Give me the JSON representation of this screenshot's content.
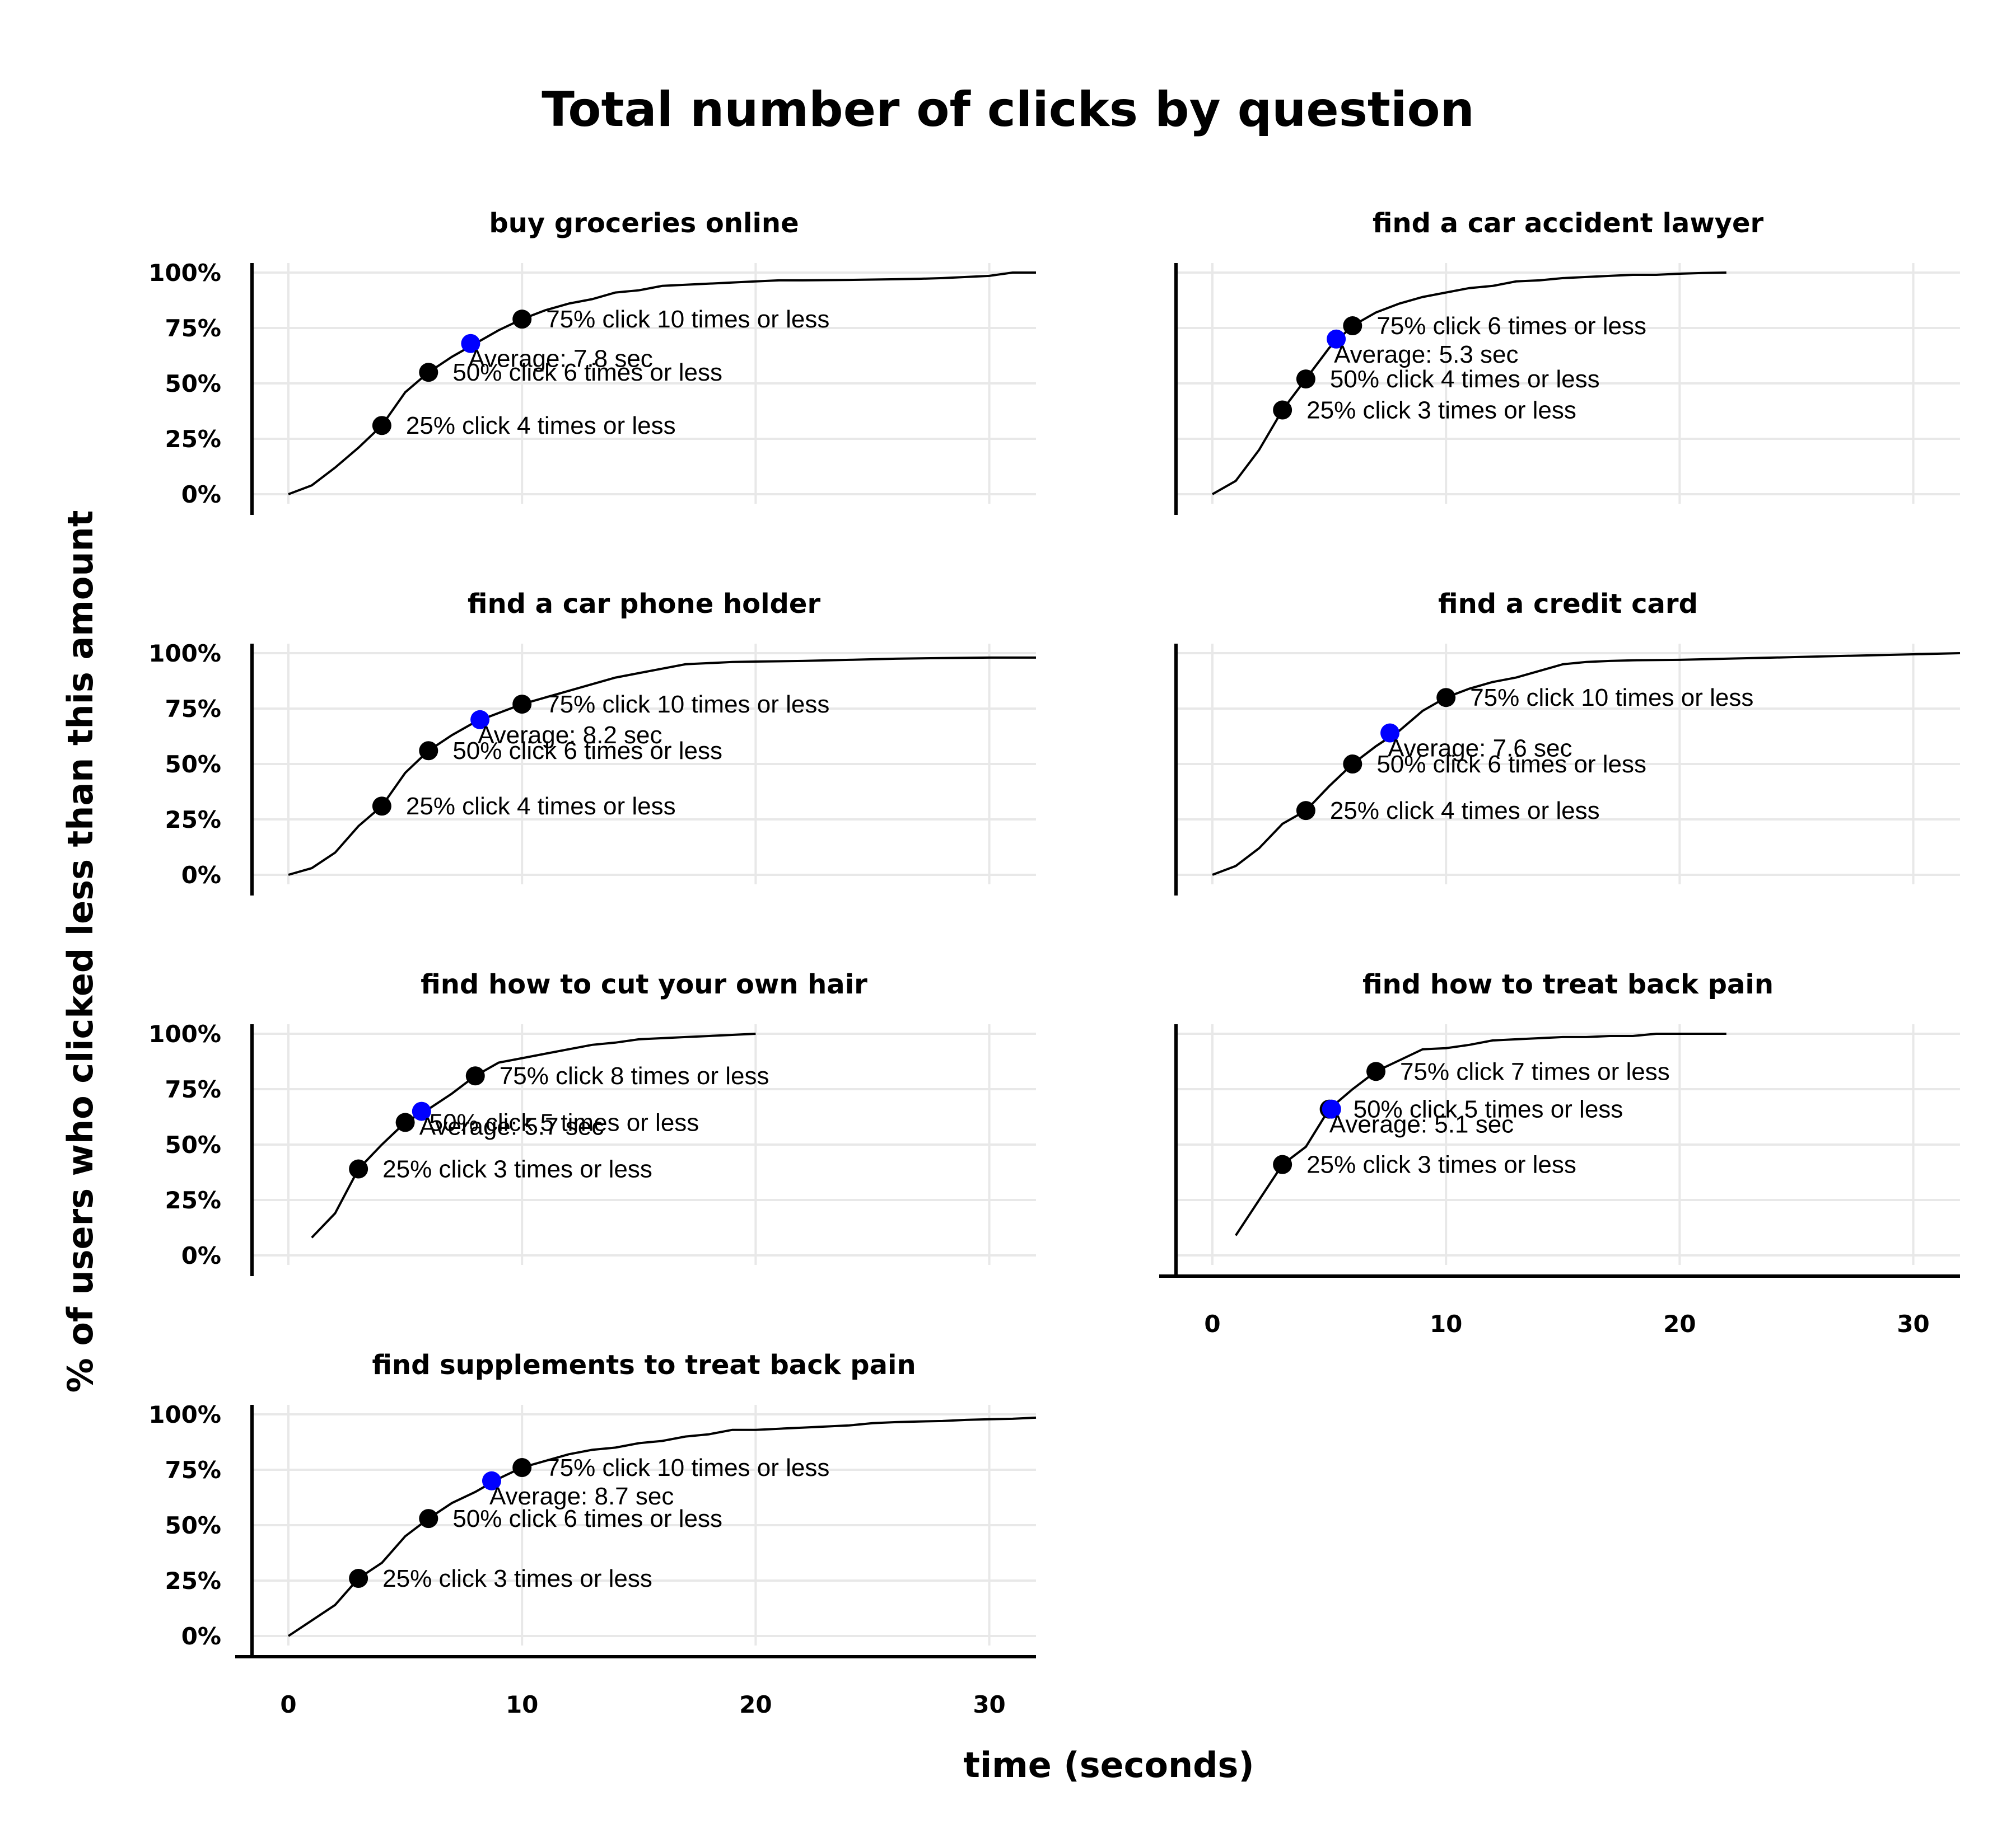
{
  "title": "Total number of clicks by question",
  "x_axis_title": "time (seconds)",
  "y_axis_title": "% of users who clicked less than this amount",
  "colors": {
    "line": "#000000",
    "quartile_point": "#000000",
    "average_point": "#0000ff",
    "grid": "#e8e8e8",
    "axis": "#000000"
  },
  "chart_data": [
    {
      "type": "line",
      "title": "buy groceries online",
      "xlim": [
        0,
        32
      ],
      "ylim": [
        0,
        1
      ],
      "grid": true,
      "x_ticks": [
        0,
        10,
        20,
        30
      ],
      "y_ticks": [
        0,
        0.25,
        0.5,
        0.75,
        1
      ],
      "x_tick_labels": [],
      "y_tick_labels": [
        "0%",
        "25%",
        "50%",
        "75%",
        "100%"
      ],
      "series": [
        {
          "x": [
            0,
            1,
            2,
            3,
            4,
            5,
            6,
            7,
            8,
            9,
            10,
            11,
            12,
            13,
            14,
            15,
            16,
            17,
            18,
            19,
            20,
            21,
            22,
            24,
            26,
            27,
            28,
            29,
            30,
            31,
            32
          ],
          "y": [
            0,
            0.04,
            0.12,
            0.21,
            0.31,
            0.46,
            0.55,
            0.62,
            0.68,
            0.74,
            0.79,
            0.83,
            0.86,
            0.88,
            0.91,
            0.92,
            0.94,
            0.945,
            0.95,
            0.955,
            0.96,
            0.965,
            0.965,
            0.967,
            0.97,
            0.972,
            0.975,
            0.98,
            0.985,
            1.0,
            1.0
          ]
        }
      ],
      "points": [
        {
          "x": 4,
          "y": 0.31,
          "kind": "quartile",
          "label": "25% click 4 times or less"
        },
        {
          "x": 6,
          "y": 0.55,
          "kind": "quartile",
          "label": "50% click 6 times or less"
        },
        {
          "x": 10,
          "y": 0.79,
          "kind": "quartile",
          "label": "75% click 10 times or less"
        },
        {
          "x": 7.8,
          "y": 0.68,
          "kind": "average",
          "label": "Average: 7.8 sec"
        }
      ]
    },
    {
      "type": "line",
      "title": "find a car accident lawyer",
      "xlim": [
        0,
        32
      ],
      "ylim": [
        0,
        1
      ],
      "grid": true,
      "x_ticks": [
        0,
        10,
        20,
        30
      ],
      "y_ticks": [
        0,
        0.25,
        0.5,
        0.75,
        1
      ],
      "x_tick_labels": [],
      "y_tick_labels": [],
      "series": [
        {
          "x": [
            0,
            1,
            2,
            3,
            4,
            5,
            6,
            7,
            8,
            9,
            10,
            11,
            12,
            13,
            14,
            15,
            16,
            17,
            18,
            19,
            20,
            21,
            22
          ],
          "y": [
            0,
            0.06,
            0.2,
            0.38,
            0.52,
            0.66,
            0.76,
            0.82,
            0.86,
            0.89,
            0.91,
            0.93,
            0.94,
            0.96,
            0.965,
            0.975,
            0.98,
            0.985,
            0.99,
            0.99,
            0.995,
            0.998,
            1.0
          ]
        }
      ],
      "points": [
        {
          "x": 3,
          "y": 0.38,
          "kind": "quartile",
          "label": "25% click 3 times or less"
        },
        {
          "x": 4,
          "y": 0.52,
          "kind": "quartile",
          "label": "50% click 4 times or less"
        },
        {
          "x": 6,
          "y": 0.76,
          "kind": "quartile",
          "label": "75% click 6 times or less"
        },
        {
          "x": 5.3,
          "y": 0.7,
          "kind": "average",
          "label": "Average: 5.3 sec"
        }
      ]
    },
    {
      "type": "line",
      "title": "find a car phone holder",
      "xlim": [
        0,
        32
      ],
      "ylim": [
        0,
        1
      ],
      "grid": true,
      "x_ticks": [
        0,
        10,
        20,
        30
      ],
      "y_ticks": [
        0,
        0.25,
        0.5,
        0.75,
        1
      ],
      "x_tick_labels": [],
      "y_tick_labels": [
        "0%",
        "25%",
        "50%",
        "75%",
        "100%"
      ],
      "series": [
        {
          "x": [
            0,
            1,
            2,
            3,
            4,
            5,
            6,
            7,
            8,
            9,
            10,
            11,
            12,
            13,
            14,
            15,
            16,
            17,
            18,
            19,
            20,
            22,
            24,
            26,
            28,
            30,
            32
          ],
          "y": [
            0,
            0.03,
            0.1,
            0.22,
            0.31,
            0.46,
            0.56,
            0.63,
            0.69,
            0.73,
            0.77,
            0.8,
            0.83,
            0.86,
            0.89,
            0.91,
            0.93,
            0.95,
            0.955,
            0.96,
            0.962,
            0.965,
            0.97,
            0.975,
            0.978,
            0.98,
            0.98
          ]
        }
      ],
      "points": [
        {
          "x": 4,
          "y": 0.31,
          "kind": "quartile",
          "label": "25% click 4 times or less"
        },
        {
          "x": 6,
          "y": 0.56,
          "kind": "quartile",
          "label": "50% click 6 times or less"
        },
        {
          "x": 10,
          "y": 0.77,
          "kind": "quartile",
          "label": "75% click 10 times or less"
        },
        {
          "x": 8.2,
          "y": 0.7,
          "kind": "average",
          "label": "Average: 8.2 sec"
        }
      ]
    },
    {
      "type": "line",
      "title": "find a credit card",
      "xlim": [
        0,
        32
      ],
      "ylim": [
        0,
        1
      ],
      "grid": true,
      "x_ticks": [
        0,
        10,
        20,
        30
      ],
      "y_ticks": [
        0,
        0.25,
        0.5,
        0.75,
        1
      ],
      "x_tick_labels": [],
      "y_tick_labels": [],
      "series": [
        {
          "x": [
            0,
            1,
            2,
            3,
            4,
            5,
            6,
            7,
            8,
            9,
            10,
            11,
            12,
            13,
            14,
            15,
            16,
            17,
            18,
            20,
            22,
            24,
            26,
            28,
            30,
            32
          ],
          "y": [
            0,
            0.04,
            0.12,
            0.23,
            0.29,
            0.4,
            0.5,
            0.58,
            0.65,
            0.74,
            0.8,
            0.84,
            0.87,
            0.89,
            0.92,
            0.95,
            0.96,
            0.965,
            0.968,
            0.97,
            0.975,
            0.98,
            0.985,
            0.99,
            0.995,
            1.0
          ]
        }
      ],
      "points": [
        {
          "x": 4,
          "y": 0.29,
          "kind": "quartile",
          "label": "25% click 4 times or less"
        },
        {
          "x": 6,
          "y": 0.5,
          "kind": "quartile",
          "label": "50% click 6 times or less"
        },
        {
          "x": 10,
          "y": 0.8,
          "kind": "quartile",
          "label": "75% click 10 times or less"
        },
        {
          "x": 7.6,
          "y": 0.64,
          "kind": "average",
          "label": "Average: 7.6 sec"
        }
      ]
    },
    {
      "type": "line",
      "title": "find how to cut your own hair",
      "xlim": [
        0,
        32
      ],
      "ylim": [
        0,
        1
      ],
      "grid": true,
      "x_ticks": [
        0,
        10,
        20,
        30
      ],
      "y_ticks": [
        0,
        0.25,
        0.5,
        0.75,
        1
      ],
      "x_tick_labels": [],
      "y_tick_labels": [
        "0%",
        "25%",
        "50%",
        "75%",
        "100%"
      ],
      "series": [
        {
          "x": [
            1,
            2,
            3,
            4,
            5,
            6,
            7,
            8,
            9,
            10,
            11,
            12,
            13,
            14,
            15,
            16,
            17,
            18,
            19,
            20
          ],
          "y": [
            0.08,
            0.19,
            0.39,
            0.5,
            0.6,
            0.66,
            0.73,
            0.81,
            0.87,
            0.89,
            0.91,
            0.93,
            0.95,
            0.96,
            0.975,
            0.98,
            0.985,
            0.99,
            0.995,
            1.0
          ]
        }
      ],
      "points": [
        {
          "x": 3,
          "y": 0.39,
          "kind": "quartile",
          "label": "25% click 3 times or less"
        },
        {
          "x": 5,
          "y": 0.6,
          "kind": "quartile",
          "label": "50% click 5 times or less"
        },
        {
          "x": 8,
          "y": 0.81,
          "kind": "quartile",
          "label": "75% click 8 times or less"
        },
        {
          "x": 5.7,
          "y": 0.65,
          "kind": "average",
          "label": "Average: 5.7 sec"
        }
      ]
    },
    {
      "type": "line",
      "title": "find how to treat back pain",
      "xlim": [
        0,
        32
      ],
      "ylim": [
        0,
        1
      ],
      "grid": true,
      "x_ticks": [
        0,
        10,
        20,
        30
      ],
      "y_ticks": [
        0,
        0.25,
        0.5,
        0.75,
        1
      ],
      "x_tick_labels": [
        "0",
        "10",
        "20",
        "30"
      ],
      "y_tick_labels": [],
      "series": [
        {
          "x": [
            1,
            2,
            3,
            4,
            5,
            6,
            7,
            8,
            9,
            10,
            11,
            12,
            13,
            14,
            15,
            16,
            17,
            18,
            19,
            20,
            21,
            22
          ],
          "y": [
            0.09,
            0.25,
            0.41,
            0.49,
            0.66,
            0.75,
            0.83,
            0.88,
            0.93,
            0.935,
            0.95,
            0.97,
            0.975,
            0.98,
            0.985,
            0.985,
            0.99,
            0.99,
            1.0,
            1.0,
            1.0,
            1.0
          ]
        }
      ],
      "points": [
        {
          "x": 3,
          "y": 0.41,
          "kind": "quartile",
          "label": "25% click 3 times or less"
        },
        {
          "x": 5,
          "y": 0.66,
          "kind": "quartile",
          "label": "50% click 5 times or less"
        },
        {
          "x": 7,
          "y": 0.83,
          "kind": "quartile",
          "label": "75% click 7 times or less"
        },
        {
          "x": 5.1,
          "y": 0.66,
          "kind": "average",
          "label": "Average: 5.1 sec"
        }
      ]
    },
    {
      "type": "line",
      "title": "find supplements to treat back pain",
      "xlim": [
        0,
        32
      ],
      "ylim": [
        0,
        1
      ],
      "grid": true,
      "x_ticks": [
        0,
        10,
        20,
        30
      ],
      "y_ticks": [
        0,
        0.25,
        0.5,
        0.75,
        1
      ],
      "x_tick_labels": [
        "0",
        "10",
        "20",
        "30"
      ],
      "y_tick_labels": [
        "0%",
        "25%",
        "50%",
        "75%",
        "100%"
      ],
      "series": [
        {
          "x": [
            0,
            1,
            2,
            3,
            4,
            5,
            6,
            7,
            8,
            9,
            10,
            11,
            12,
            13,
            14,
            15,
            16,
            17,
            18,
            19,
            20,
            21,
            22,
            23,
            24,
            25,
            26,
            27,
            28,
            29,
            30,
            31,
            32
          ],
          "y": [
            0,
            0.07,
            0.14,
            0.26,
            0.33,
            0.45,
            0.53,
            0.6,
            0.65,
            0.71,
            0.76,
            0.79,
            0.82,
            0.84,
            0.85,
            0.87,
            0.88,
            0.9,
            0.91,
            0.93,
            0.93,
            0.935,
            0.94,
            0.945,
            0.95,
            0.96,
            0.965,
            0.968,
            0.97,
            0.975,
            0.978,
            0.98,
            0.985
          ]
        }
      ],
      "points": [
        {
          "x": 3,
          "y": 0.26,
          "kind": "quartile",
          "label": "25% click 3 times or less"
        },
        {
          "x": 6,
          "y": 0.53,
          "kind": "quartile",
          "label": "50% click 6 times or less"
        },
        {
          "x": 10,
          "y": 0.76,
          "kind": "quartile",
          "label": "75% click 10 times or less"
        },
        {
          "x": 8.7,
          "y": 0.7,
          "kind": "average",
          "label": "Average: 8.7 sec"
        }
      ]
    }
  ]
}
